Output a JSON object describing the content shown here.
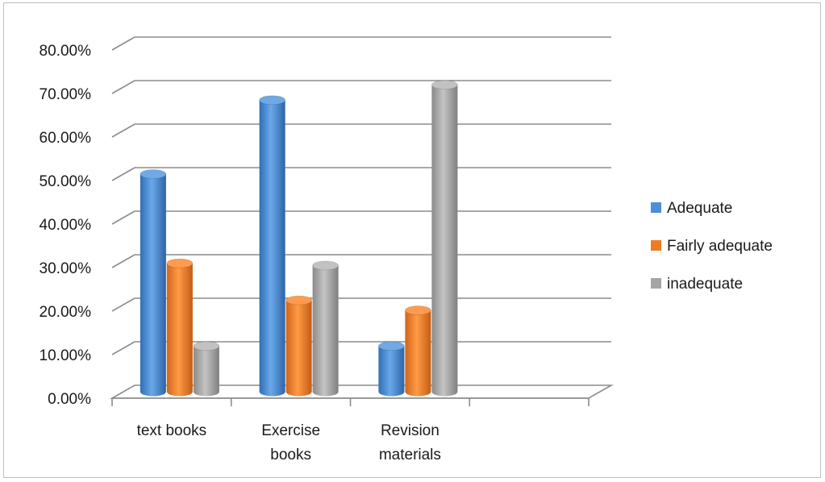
{
  "chart_data": {
    "type": "bar",
    "style": "3d-clustered-column",
    "categories": [
      [
        "text books"
      ],
      [
        "Exercise",
        "books"
      ],
      [
        "Revision",
        "materials"
      ],
      [
        ""
      ]
    ],
    "series": [
      {
        "name": "Adequate",
        "color": "#4a90d9",
        "values": [
          50.0,
          67.0,
          10.5,
          null
        ]
      },
      {
        "name": "Fairly adequate",
        "color": "#ef7c22",
        "values": [
          29.5,
          21.0,
          18.7,
          null
        ]
      },
      {
        "name": "inadequate",
        "color": "#a5a5a5",
        "values": [
          10.5,
          29.0,
          70.5,
          null
        ]
      }
    ],
    "y_ticks": [
      "0.00%",
      "10.00%",
      "20.00%",
      "30.00%",
      "40.00%",
      "50.00%",
      "60.00%",
      "70.00%",
      "80.00%"
    ],
    "ylim": [
      0,
      80
    ],
    "grid": true,
    "legend_position": "right",
    "title": "",
    "xlabel": "",
    "ylabel": ""
  }
}
